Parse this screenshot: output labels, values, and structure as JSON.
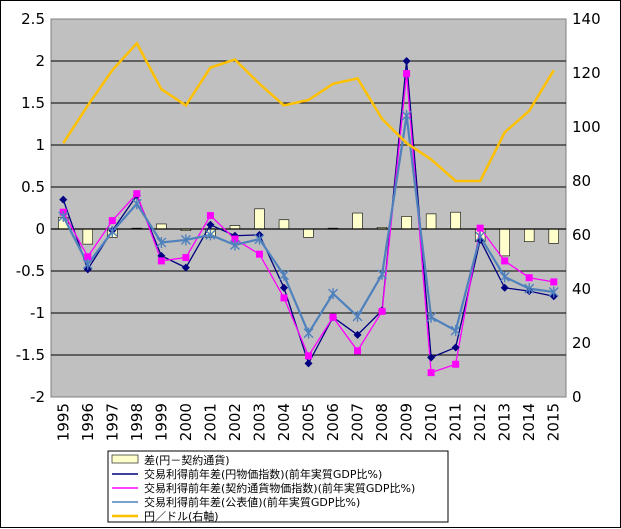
{
  "chart_data": {
    "type": "bar+line",
    "title": "",
    "categories": [
      "1995",
      "1996",
      "1997",
      "1998",
      "1999",
      "2000",
      "2001",
      "2002",
      "2003",
      "2004",
      "2005",
      "2006",
      "2007",
      "2008",
      "2009",
      "2010",
      "2011",
      "2012",
      "2013",
      "2014",
      "2015"
    ],
    "y_left": {
      "min": -2,
      "max": 2.5,
      "step": 0.5,
      "ticks": [
        "2.5",
        "2",
        "1.5",
        "1",
        "0.5",
        "0",
        "-0.5",
        "-1",
        "-1.5",
        "-2"
      ]
    },
    "y_right": {
      "min": 0,
      "max": 140,
      "step": 20,
      "ticks": [
        "140",
        "120",
        "100",
        "80",
        "60",
        "40",
        "20",
        "0"
      ]
    },
    "grid": true,
    "legend_position": "bottom",
    "bar_series": {
      "name": "差(円－契約通貨)",
      "axis": "left",
      "color": "#FFFFCC",
      "values": [
        0.14,
        -0.18,
        -0.1,
        0.01,
        0.06,
        -0.02,
        -0.1,
        0.04,
        0.24,
        0.11,
        -0.1,
        0.01,
        0.19,
        0.02,
        0.15,
        0.18,
        0.2,
        -0.15,
        -0.32,
        -0.15,
        -0.17
      ]
    },
    "series": [
      {
        "name": "交易利得前年差(円物価指数)(前年実質GDP比%)",
        "axis": "left",
        "color": "#000080",
        "marker": "diamond",
        "values": [
          0.35,
          -0.48,
          -0.02,
          0.4,
          -0.32,
          -0.46,
          0.05,
          -0.08,
          -0.07,
          -0.7,
          -1.6,
          -1.05,
          -1.26,
          -0.97,
          2.0,
          -1.53,
          -1.41,
          -0.13,
          -0.7,
          -0.74,
          -0.8
        ]
      },
      {
        "name": "交易利得前年差(契約通貨物価指数)(前年実質GDP比%)",
        "axis": "left",
        "color": "#FF00FF",
        "marker": "square",
        "values": [
          0.2,
          -0.33,
          0.1,
          0.42,
          -0.38,
          -0.34,
          0.16,
          -0.12,
          -0.3,
          -0.82,
          -1.51,
          -1.05,
          -1.45,
          -0.98,
          1.85,
          -1.71,
          -1.61,
          0.01,
          -0.38,
          -0.58,
          -0.63
        ]
      },
      {
        "name": "交易利得前年差(公表値)(前年実質GDP比%)",
        "axis": "left",
        "color": "#4F81BD",
        "marker": "star",
        "values": [
          0.15,
          -0.42,
          -0.03,
          0.3,
          -0.16,
          -0.13,
          -0.07,
          -0.19,
          -0.12,
          -0.55,
          -1.24,
          -0.77,
          -1.04,
          -0.54,
          1.35,
          -1.05,
          -1.21,
          -0.09,
          -0.57,
          -0.71,
          -0.75
        ]
      },
      {
        "name": "円／ドル(右軸)",
        "axis": "right",
        "color": "#FFC000",
        "marker": "none",
        "values": [
          94,
          108,
          121,
          131,
          114,
          108,
          122,
          125,
          116,
          108,
          110,
          116,
          118,
          103,
          94,
          88,
          80,
          80,
          98,
          106,
          121
        ]
      }
    ]
  }
}
